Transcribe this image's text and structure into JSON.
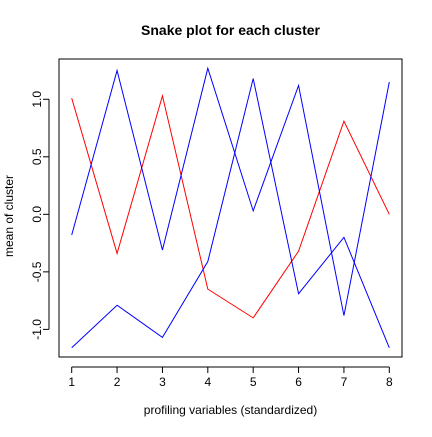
{
  "chart_data": {
    "type": "line",
    "title": "Snake plot for each cluster",
    "xlabel": "profiling variables (standardized)",
    "ylabel": "mean of cluster",
    "x": [
      1,
      2,
      3,
      4,
      5,
      6,
      7,
      8
    ],
    "xticks": [
      1,
      2,
      3,
      4,
      5,
      6,
      7,
      8
    ],
    "yticks": [
      -1.0,
      -0.5,
      0.0,
      0.5,
      1.0
    ],
    "ytick_labels": [
      "-1.0",
      "-0.5",
      "0.0",
      "0.5",
      "1.0"
    ],
    "xlim": [
      0.72,
      8.28
    ],
    "ylim": [
      -1.24,
      1.35
    ],
    "grid": false,
    "legend": "none",
    "series": [
      {
        "color": "#ff0000",
        "values": [
          1.01,
          -0.34,
          1.03,
          -0.65,
          -0.9,
          -0.32,
          0.81,
          0.0
        ]
      },
      {
        "color": "#0000ff",
        "values": [
          -0.18,
          1.25,
          -0.31,
          1.27,
          0.03,
          1.12,
          -0.88,
          1.15
        ]
      },
      {
        "color": "#0000ff",
        "values": [
          -1.16,
          -0.79,
          -1.07,
          -0.41,
          1.18,
          -0.69,
          -0.2,
          -1.16
        ]
      }
    ]
  }
}
